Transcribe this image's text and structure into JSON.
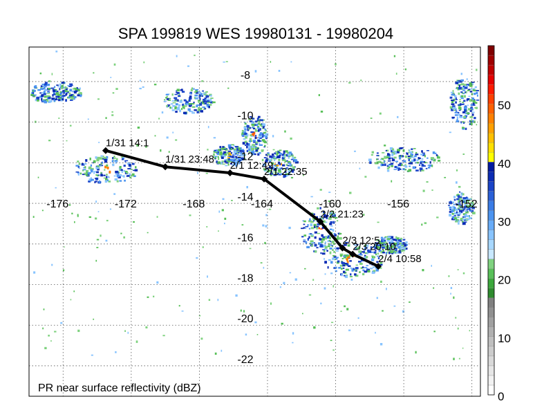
{
  "title": "SPA 199819 WES 19980131 - 19980204",
  "caption": "PR near surface reflectivity (dBZ)",
  "lon_labels": [
    "-176",
    "-172",
    "-168",
    "-164",
    "-160",
    "-156",
    "-152"
  ],
  "lat_labels": [
    "-8",
    "-10",
    "-12",
    "-14",
    "-16",
    "-18",
    "-20",
    "-22"
  ],
  "extent": {
    "lon": [
      -178,
      -151.5
    ],
    "lat": [
      -6.3,
      -23.5
    ]
  },
  "track": [
    {
      "label": "1/31 14:1",
      "lon": -173.5,
      "lat": -11.4
    },
    {
      "label": "1/31 23:48",
      "lon": -170.0,
      "lat": -12.2
    },
    {
      "label": "2/1 12:49",
      "lon": -166.2,
      "lat": -12.5
    },
    {
      "label": "2/1 22:35",
      "lon": -164.2,
      "lat": -12.8
    },
    {
      "label": "2/2 21:23",
      "lon": -160.9,
      "lat": -14.9
    },
    {
      "label": "2/3 12:5",
      "lon": -159.6,
      "lat": -16.2
    },
    {
      "label": "2/3 20:10",
      "lon": -159.0,
      "lat": -16.5
    },
    {
      "label": "2/4 10:58",
      "lon": -157.5,
      "lat": -17.1
    }
  ],
  "colorbar": {
    "ticks": [
      "0",
      "10",
      "20",
      "30",
      "40",
      "50"
    ],
    "range": [
      0,
      60
    ],
    "colors": [
      "#ffffff",
      "#f2f2f2",
      "#e6e6e6",
      "#d9d9d9",
      "#cccccc",
      "#bfbfbf",
      "#b0b0b0",
      "#a0a0a0",
      "#909090",
      "#808080",
      "#2e8b2e",
      "#3ca83c",
      "#58c058",
      "#7fd27f",
      "#c8e8ff",
      "#a8d8ff",
      "#88c4ff",
      "#68acf8",
      "#4c94f0",
      "#3a7ce6",
      "#2a60d8",
      "#1a44c8",
      "#0c2cb4",
      "#001aa0",
      "#ffff00",
      "#ffe000",
      "#ffc000",
      "#ffa000",
      "#ff8000",
      "#ff6000",
      "#ff4000",
      "#ff1a00",
      "#e60000",
      "#c00000",
      "#a00000",
      "#800000"
    ]
  },
  "rain": [
    {
      "lon": -173.5,
      "lat": -12.3,
      "rx": 35,
      "ry": 16,
      "core": "#ff8000"
    },
    {
      "lon": -168.7,
      "lat": -8.9,
      "rx": 28,
      "ry": 14,
      "core": "#1a44c8"
    },
    {
      "lon": -164.8,
      "lat": -10.6,
      "rx": 14,
      "ry": 22,
      "core": "#ff6000"
    },
    {
      "lon": -163.4,
      "lat": -12.0,
      "rx": 20,
      "ry": 16,
      "core": "#ffa000"
    },
    {
      "lon": -166.3,
      "lat": -11.6,
      "rx": 18,
      "ry": 12,
      "core": "#ffc000"
    },
    {
      "lon": -160.9,
      "lat": -15.3,
      "rx": 22,
      "ry": 26,
      "core": "#ff4000"
    },
    {
      "lon": -159.0,
      "lat": -16.7,
      "rx": 34,
      "ry": 20,
      "core": "#ff8000"
    },
    {
      "lon": -152.5,
      "lat": -9.0,
      "rx": 16,
      "ry": 30,
      "core": "#1a44c8"
    },
    {
      "lon": -176.5,
      "lat": -8.5,
      "rx": 30,
      "ry": 12,
      "core": "#3a7ce6"
    },
    {
      "lon": -156.0,
      "lat": -11.8,
      "rx": 40,
      "ry": 14,
      "core": "#4c94f0"
    },
    {
      "lon": -152.7,
      "lat": -14.2,
      "rx": 14,
      "ry": 18,
      "core": "#1a44c8"
    },
    {
      "lon": -156.8,
      "lat": -16.0,
      "rx": 18,
      "ry": 10,
      "core": "#1a44c8"
    }
  ]
}
